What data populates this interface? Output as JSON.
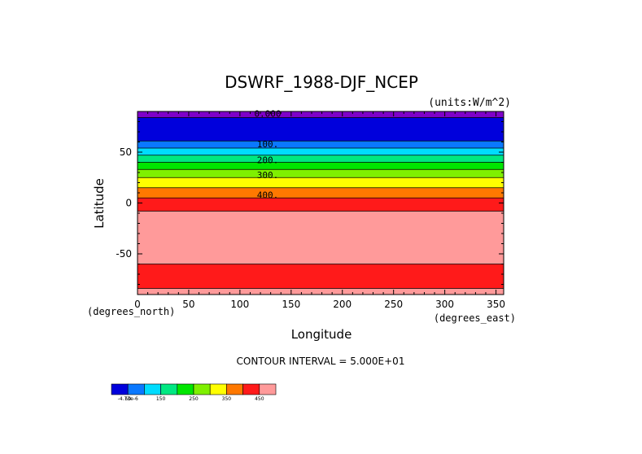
{
  "chart_data": {
    "type": "heatmap",
    "title": "DSWRF_1988-DJF_NCEP",
    "units": "(units:W/m^2)",
    "xlabel": "Longitude",
    "ylabel": "Latitude",
    "xunit": "(degrees_east)",
    "yunit": "(degrees_north)",
    "xlim": [
      0,
      357.5
    ],
    "ylim": [
      -90,
      90
    ],
    "xticks": [
      "0",
      "50",
      "100",
      "150",
      "200",
      "250",
      "300",
      "350"
    ],
    "yticks": [
      "50",
      "0",
      "-50"
    ],
    "contour_interval_text": "CONTOUR INTERVAL = 5.000E+01",
    "contour_labels": [
      "0.000",
      "100.",
      "200.",
      "300.",
      "400."
    ],
    "bands": [
      {
        "lat_from": 84,
        "lat_to": 90,
        "color": "#7f00c8"
      },
      {
        "lat_from": 61,
        "lat_to": 84,
        "color": "#0000dc"
      },
      {
        "lat_from": 54,
        "lat_to": 61,
        "color": "#0a78ff"
      },
      {
        "lat_from": 47,
        "lat_to": 54,
        "color": "#00dcff"
      },
      {
        "lat_from": 40,
        "lat_to": 47,
        "color": "#00e882"
      },
      {
        "lat_from": 33,
        "lat_to": 40,
        "color": "#00e600"
      },
      {
        "lat_from": 25,
        "lat_to": 33,
        "color": "#7ff000"
      },
      {
        "lat_from": 15,
        "lat_to": 25,
        "color": "#ffff00"
      },
      {
        "lat_from": 5,
        "lat_to": 15,
        "color": "#ff7800"
      },
      {
        "lat_from": -8,
        "lat_to": 5,
        "color": "#ff1a1a"
      },
      {
        "lat_from": -60,
        "lat_to": -8,
        "color": "#ff9a9a"
      },
      {
        "lat_from": -84,
        "lat_to": -60,
        "color": "#ff1a1a"
      },
      {
        "lat_from": -90,
        "lat_to": -84,
        "color": "#ff9a9a"
      }
    ],
    "colorbar": {
      "colors": [
        "#0000dc",
        "#0a78ff",
        "#00dcff",
        "#00e882",
        "#00e600",
        "#7ff000",
        "#ffff00",
        "#ff7800",
        "#ff1a1a",
        "#ff9a9a"
      ],
      "labels": [
        "-4.73e-6",
        "50",
        "150",
        "250",
        "350",
        "450"
      ]
    }
  }
}
